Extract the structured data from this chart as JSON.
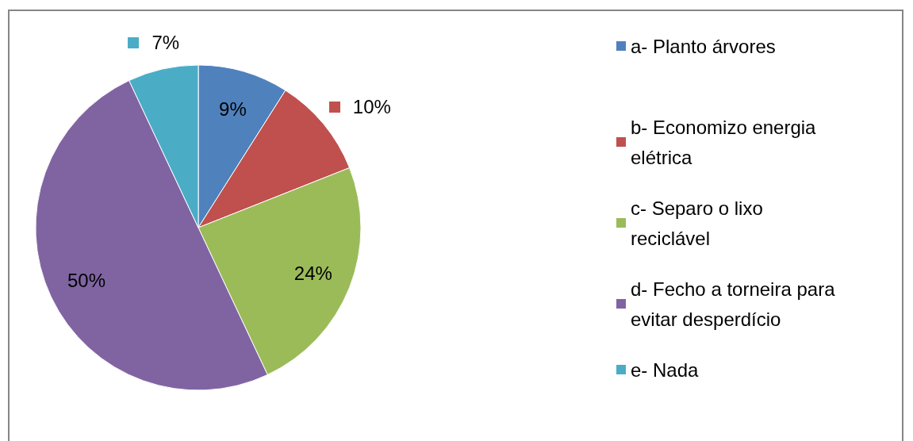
{
  "chart_data": {
    "type": "pie",
    "categories": [
      "a- Planto árvores",
      "b- Economizo energia elétrica",
      "c- Separo o lixo reciclável",
      "d- Fecho a torneira para evitar desperdício",
      "e- Nada"
    ],
    "values": [
      9,
      10,
      24,
      50,
      7
    ],
    "value_labels": [
      "9%",
      "10%",
      "24%",
      "50%",
      "7%"
    ],
    "colors": [
      "#4f81bd",
      "#c0504d",
      "#9bbb59",
      "#8064a2",
      "#4bacc6"
    ],
    "legend": "right"
  }
}
